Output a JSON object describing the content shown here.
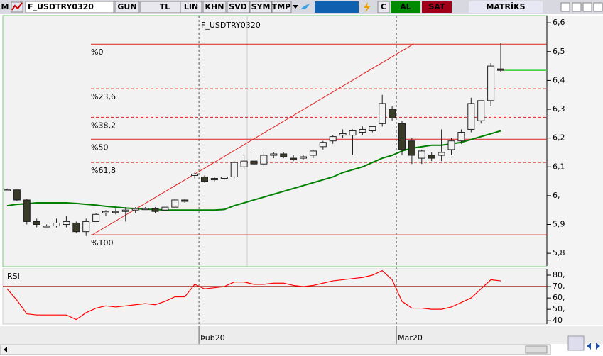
{
  "toolbar": {
    "items": [
      "M",
      "F_USDTRY0320",
      "GUN",
      "TL",
      "LIN",
      "KHN",
      "SVD",
      "SYM",
      "TMP",
      "C",
      "AL",
      "SAT",
      "MATRİKS"
    ]
  },
  "chart_data": [
    {
      "type": "candlestick",
      "title": "F_USDTRY0320",
      "ylim": [
        5.756,
        6.625
      ],
      "yticks": [
        {
          "value": 6.6,
          "label": "6,6"
        },
        {
          "value": 6.5,
          "label": "6,5"
        },
        {
          "value": 6.4,
          "label": "6,4"
        },
        {
          "value": 6.3,
          "label": "6,3"
        },
        {
          "value": 6.2,
          "label": "6,2"
        },
        {
          "value": 6.1,
          "label": "6,1"
        },
        {
          "value": 6,
          "label": "6,"
        },
        {
          "value": 5.9,
          "label": "5,9"
        },
        {
          "value": 5.8,
          "label": "5,8"
        }
      ],
      "categories": [
        null,
        null,
        null,
        null,
        null,
        null,
        null,
        null,
        null,
        null,
        null,
        null,
        null,
        null,
        null,
        null,
        null,
        null,
        null,
        "Þub20",
        null,
        null,
        null,
        null,
        null,
        null,
        null,
        null,
        null,
        null,
        null,
        null,
        null,
        null,
        null,
        null,
        null,
        null,
        null,
        "Mar20",
        null,
        null,
        null,
        null,
        null,
        null,
        null,
        null,
        null,
        null,
        null
      ],
      "open": [
        6.02,
        6.02,
        5.985,
        5.91,
        5.895,
        5.895,
        5.9,
        5.905,
        5.875,
        5.91,
        5.94,
        5.945,
        5.945,
        5.95,
        5.955,
        5.955,
        5.95,
        5.96,
        5.985,
        6.07,
        6.065,
        6.055,
        6.06,
        6.065,
        6.1,
        6.12,
        6.11,
        6.14,
        6.145,
        6.13,
        6.13,
        6.14,
        6.17,
        6.19,
        6.21,
        6.21,
        6.22,
        6.225,
        6.25,
        6.3,
        6.25,
        6.19,
        6.13,
        6.14,
        6.14,
        6.16,
        6.19,
        6.23,
        6.26,
        6.33,
        6.44
      ],
      "high": [
        6.025,
        6.02,
        5.99,
        5.92,
        5.9,
        5.92,
        5.93,
        5.91,
        5.92,
        5.94,
        5.95,
        5.955,
        5.96,
        5.96,
        5.96,
        5.96,
        5.965,
        5.99,
        5.99,
        6.08,
        6.07,
        6.065,
        6.065,
        6.12,
        6.14,
        6.15,
        6.15,
        6.15,
        6.15,
        6.14,
        6.14,
        6.16,
        6.19,
        6.21,
        6.23,
        6.23,
        6.24,
        6.24,
        6.35,
        6.31,
        6.26,
        6.2,
        6.16,
        6.15,
        6.23,
        6.2,
        6.23,
        6.34,
        6.33,
        6.46,
        6.53
      ],
      "low": [
        6.015,
        5.98,
        5.9,
        5.89,
        5.89,
        5.89,
        5.89,
        5.87,
        5.86,
        5.91,
        5.93,
        5.935,
        5.91,
        5.94,
        5.95,
        5.94,
        5.95,
        5.955,
        5.975,
        6.06,
        6.045,
        6.05,
        6.055,
        6.06,
        6.09,
        6.11,
        6.1,
        6.13,
        6.13,
        6.12,
        6.125,
        6.13,
        6.16,
        6.18,
        6.2,
        6.14,
        6.21,
        6.22,
        6.24,
        6.26,
        6.14,
        6.11,
        6.11,
        6.12,
        6.12,
        6.14,
        6.18,
        6.22,
        6.25,
        6.31,
        6.43
      ],
      "close": [
        6.02,
        5.985,
        5.91,
        5.9,
        5.895,
        5.905,
        5.91,
        5.875,
        5.91,
        5.935,
        5.945,
        5.945,
        5.95,
        5.955,
        5.955,
        5.945,
        5.96,
        5.985,
        5.98,
        6.075,
        6.05,
        6.06,
        6.065,
        6.115,
        6.12,
        6.11,
        6.14,
        6.145,
        6.135,
        6.125,
        6.135,
        6.155,
        6.185,
        6.205,
        6.215,
        6.225,
        6.23,
        6.24,
        6.32,
        6.27,
        6.16,
        6.14,
        6.155,
        6.13,
        6.15,
        6.19,
        6.22,
        6.32,
        6.33,
        6.45,
        6.435
      ],
      "series": [
        {
          "color": "#008000",
          "values": [
            5.965,
            5.97,
            5.972,
            5.975,
            5.975,
            5.975,
            5.975,
            5.973,
            5.97,
            5.967,
            5.963,
            5.96,
            5.957,
            5.955,
            5.953,
            5.952,
            5.95,
            5.95,
            5.95,
            5.95,
            5.95,
            5.95,
            5.952,
            5.965,
            5.975,
            5.985,
            5.995,
            6.005,
            6.015,
            6.025,
            6.035,
            6.045,
            6.055,
            6.065,
            6.08,
            6.09,
            6.1,
            6.115,
            6.13,
            6.14,
            6.155,
            6.165,
            6.17,
            6.175,
            6.175,
            6.18,
            6.185,
            6.195,
            6.205,
            6.215,
            6.225
          ]
        }
      ],
      "fib_levels": [
        {
          "label": "%0",
          "value": 6.526,
          "dashed": false
        },
        {
          "label": "%23,6",
          "value": 6.371,
          "dashed": true
        },
        {
          "label": "%38,2",
          "value": 6.272,
          "dashed": true
        },
        {
          "label": "%50",
          "value": 6.196,
          "dashed": false
        },
        {
          "label": "%61,8",
          "value": 6.115,
          "dashed": true
        },
        {
          "label": "%100",
          "value": 5.864,
          "dashed": false
        }
      ]
    },
    {
      "type": "line",
      "title": "RSI",
      "color": "#ff0000",
      "ylim": [
        37,
        85
      ],
      "yticks": [
        {
          "value": 80,
          "label": "80,"
        },
        {
          "value": 70,
          "label": "70,"
        },
        {
          "value": 60,
          "label": "60,"
        },
        {
          "value": 50,
          "label": "50,"
        },
        {
          "value": 40,
          "label": "40"
        }
      ],
      "reference": 70,
      "values": [
        68,
        58,
        46,
        45,
        45,
        45,
        45,
        41,
        47,
        51,
        53,
        52,
        53,
        54,
        55,
        54,
        57,
        61,
        61,
        72,
        68,
        69,
        70,
        74,
        74,
        72,
        72,
        73,
        73,
        71,
        70,
        71,
        73,
        75,
        76,
        77,
        78,
        80,
        84,
        76,
        57,
        51,
        51,
        50,
        50,
        52,
        56,
        60,
        68,
        76,
        75
      ]
    }
  ]
}
